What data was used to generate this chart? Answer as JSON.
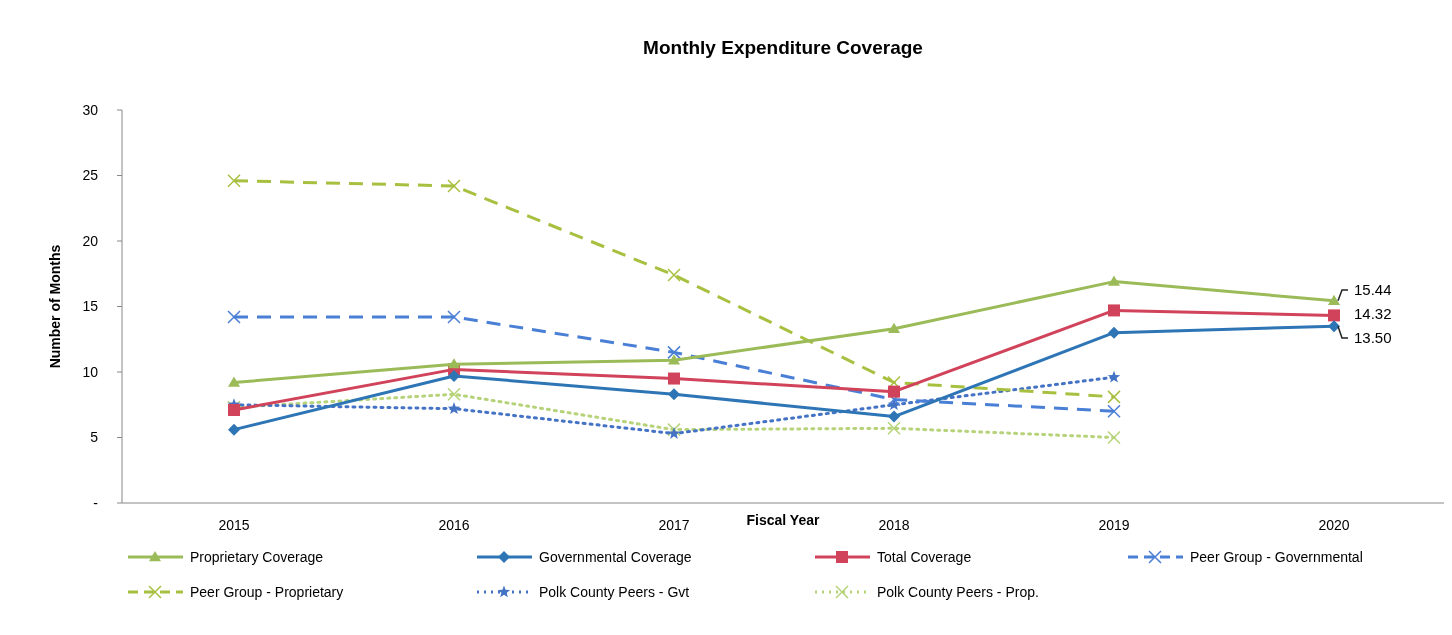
{
  "chart_data": {
    "type": "line",
    "title": "Monthly Expenditure Coverage",
    "xlabel": "Fiscal Year",
    "ylabel": "Number of Months",
    "categories": [
      "2015",
      "2016",
      "2017",
      "2018",
      "2019",
      "2020"
    ],
    "ylim": [
      0,
      30
    ],
    "yticks": [
      {
        "value": 0,
        "label": "-"
      },
      5,
      10,
      15,
      20,
      25,
      30
    ],
    "grid": false,
    "legend": "bottom",
    "series": [
      {
        "name": "Proprietary Coverage",
        "color": "#9bbb59",
        "marker": "triangle",
        "line_style": "solid",
        "values": [
          9.2,
          10.6,
          10.9,
          13.3,
          16.9,
          15.44
        ],
        "value_labels": [
          null,
          null,
          null,
          null,
          null,
          "15.44"
        ]
      },
      {
        "name": "Governmental Coverage",
        "color": "#2e75b6",
        "marker": "diamond",
        "line_style": "solid",
        "values": [
          5.6,
          9.7,
          8.3,
          6.6,
          13.0,
          13.5
        ],
        "value_labels": [
          null,
          null,
          null,
          null,
          null,
          "13.50"
        ]
      },
      {
        "name": "Total Coverage",
        "color": "#d0435a",
        "marker": "square",
        "line_style": "solid",
        "values": [
          7.1,
          10.2,
          9.5,
          8.5,
          14.7,
          14.32
        ],
        "value_labels": [
          null,
          null,
          null,
          null,
          null,
          "14.32"
        ]
      },
      {
        "name": "Peer Group - Governmental",
        "color": "#4a7fd6",
        "marker": "cross",
        "line_style": "dashed",
        "values": [
          14.2,
          14.2,
          11.5,
          7.9,
          7.0,
          null
        ]
      },
      {
        "name": "Peer Group - Proprietary",
        "color": "#a8c040",
        "marker": "cross",
        "line_style": "dashed",
        "values": [
          24.6,
          24.2,
          17.4,
          9.2,
          8.1,
          null
        ]
      },
      {
        "name": "Polk County Peers - Gvt",
        "color": "#4472c4",
        "marker": "star",
        "line_style": "dotted",
        "values": [
          7.5,
          7.2,
          5.3,
          7.5,
          9.6,
          null
        ]
      },
      {
        "name": "Polk County Peers - Prop.",
        "color": "#b6d37a",
        "marker": "cross",
        "line_style": "dotted",
        "values": [
          7.3,
          8.3,
          5.6,
          5.7,
          5.0,
          null
        ]
      }
    ]
  }
}
